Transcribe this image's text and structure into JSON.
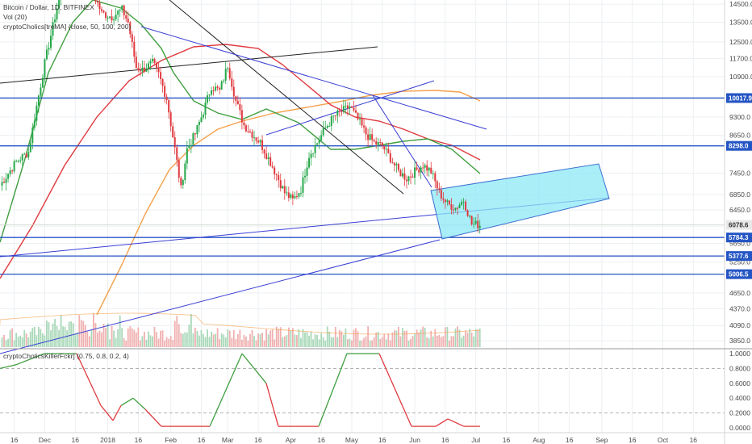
{
  "header": {
    "symbol_line": "Bitcoin / Dollar, 1D, BITFINEX",
    "volume_line": "Vol (20)",
    "ma_line": "cryptoCholics[treMA] (close, 50, 100, 200)",
    "oscillator_line": "cryptoCholicsKillerFckr] (0.75, 0.8, 0.2, 4)"
  },
  "colors": {
    "background": "#ffffff",
    "grid": "#eceff2",
    "candle_up": "#26a84a",
    "candle_down": "#e0393e",
    "ma50": "#3f9e3f",
    "ma100": "#e0393e",
    "ma200": "#f5a04a",
    "trend_blue": "#3b3fd4",
    "trend_black": "#222222",
    "hline": "#2455c4",
    "channel_fill": "#8ee8f5",
    "tag_bg": "#2455c4",
    "last_tag_bg": "#e8e8e8",
    "osc_green": "#3f9e3f",
    "osc_red": "#e0393e",
    "dashed": "#999999",
    "volume_up": "#a8d8b8",
    "volume_down": "#f0b0b0"
  },
  "chart_data": {
    "type": "candlestick",
    "title": "Bitcoin / Dollar, 1D, BITFINEX",
    "x_ticks": [
      "16",
      "Dec",
      "16",
      "2018",
      "16",
      "Feb",
      "16",
      "Mar",
      "16",
      "Apr",
      "16",
      "May",
      "16",
      "Jun",
      "16",
      "Jul",
      "16",
      "Aug",
      "16",
      "Sep",
      "16",
      "Oct",
      "16"
    ],
    "y_ticks": [
      "14500.0",
      "13500.0",
      "12500.0",
      "11700.0",
      "10900.0",
      "9300.0",
      "8650.0",
      "7450.0",
      "6850.0",
      "6450.0",
      "6050.0",
      "5650.0",
      "5250.0",
      "4650.0",
      "4370.0",
      "4090.0",
      "3850.0"
    ],
    "y_scale": "log",
    "horizontal_levels": [
      "10017.9",
      "8298.0",
      "5784.3",
      "5377.6",
      "5006.5"
    ],
    "last_price": "6078.6",
    "ma_periods": [
      50,
      100,
      200
    ],
    "oscillator": {
      "y_ticks": [
        "1.0000",
        "0.8000",
        "0.6000",
        "0.4000",
        "0.2000",
        "0.0000"
      ],
      "levels": [
        0.8,
        0.2
      ],
      "range": [
        0,
        1
      ]
    }
  }
}
